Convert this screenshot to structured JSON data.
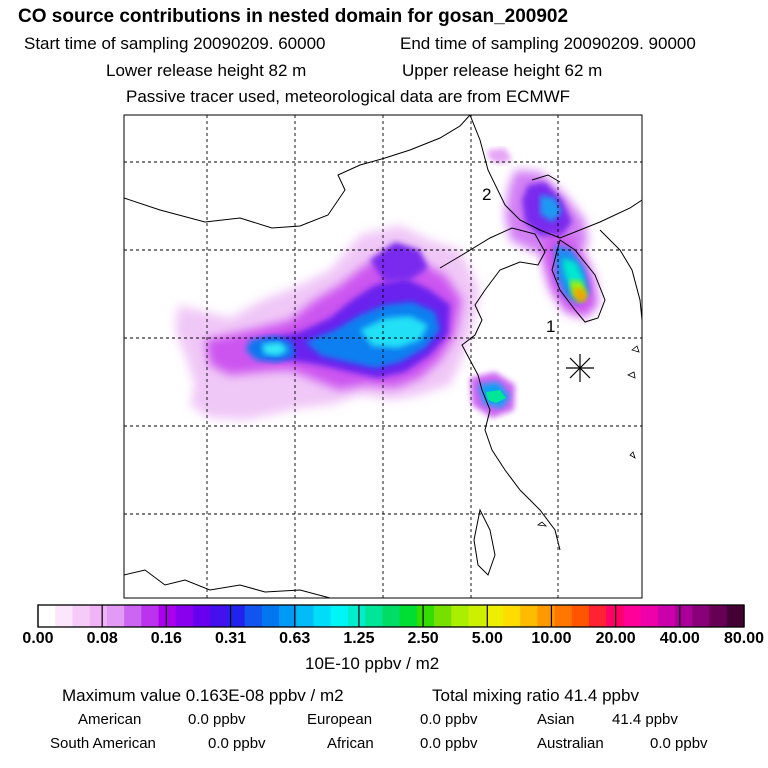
{
  "header": {
    "title": "CO  source contributions in nested domain for gosan_200902",
    "start": "Start time of sampling 20090209. 60000",
    "end": "End time of sampling 20090209. 90000",
    "lower": "Lower release height   82 m",
    "upper": "Upper release height   62 m",
    "note": "Passive tracer used, meteorological data are from ECMWF"
  },
  "chart_data": {
    "type": "heatmap",
    "title": "CO  source contributions in nested domain for gosan_200902",
    "map_labels": [
      "2",
      "1"
    ],
    "plumes": [
      {
        "name": "north-china-plain",
        "level": 0.63
      },
      {
        "name": "west-branch",
        "level": 0.63
      },
      {
        "name": "shanghai-spot",
        "level": 2.5
      },
      {
        "name": "korea-peninsula",
        "level": 10.0
      },
      {
        "name": "northeast-branch",
        "level": 0.31
      }
    ],
    "colorbar": {
      "ticks": [
        "0.00",
        "0.08",
        "0.16",
        "0.31",
        "0.63",
        "1.25",
        "2.50",
        "5.00",
        "10.00",
        "20.00",
        "40.00",
        "80.00"
      ],
      "unit": "10E-10 ppbv / m2",
      "colors": [
        "#ffffff",
        "#fbe6fb",
        "#f5ccf7",
        "#efb3f6",
        "#e29af5",
        "#cc66f2",
        "#bb33ee",
        "#aa00ee",
        "#8800ee",
        "#6600ee",
        "#4411ee",
        "#2222ee",
        "#1155ee",
        "#0077ee",
        "#0099f3",
        "#00bbf6",
        "#00ddf8",
        "#00f5f5",
        "#00eecc",
        "#00e699",
        "#00dd66",
        "#00dd33",
        "#33dd00",
        "#77e000",
        "#aaee00",
        "#ccf000",
        "#eeee00",
        "#ffdd00",
        "#ffbb00",
        "#ff9900",
        "#ff7700",
        "#ff5500",
        "#ff2233",
        "#ff0066",
        "#ff0099",
        "#ee00aa",
        "#cc00aa",
        "#aa0099",
        "#880077",
        "#660055",
        "#440033"
      ]
    }
  },
  "footer": {
    "max_value": "Maximum value  0.163E-08 ppbv / m2",
    "total": "Total mixing ratio       41.4 ppbv",
    "sources": [
      {
        "label": "American",
        "value": "0.0 ppbv"
      },
      {
        "label": "European",
        "value": "0.0 ppbv"
      },
      {
        "label": "Asian",
        "value": "41.4 ppbv"
      },
      {
        "label": "South American",
        "value": "0.0 ppbv"
      },
      {
        "label": "African",
        "value": "0.0 ppbv"
      },
      {
        "label": "Australian",
        "value": "0.0 ppbv"
      }
    ]
  }
}
